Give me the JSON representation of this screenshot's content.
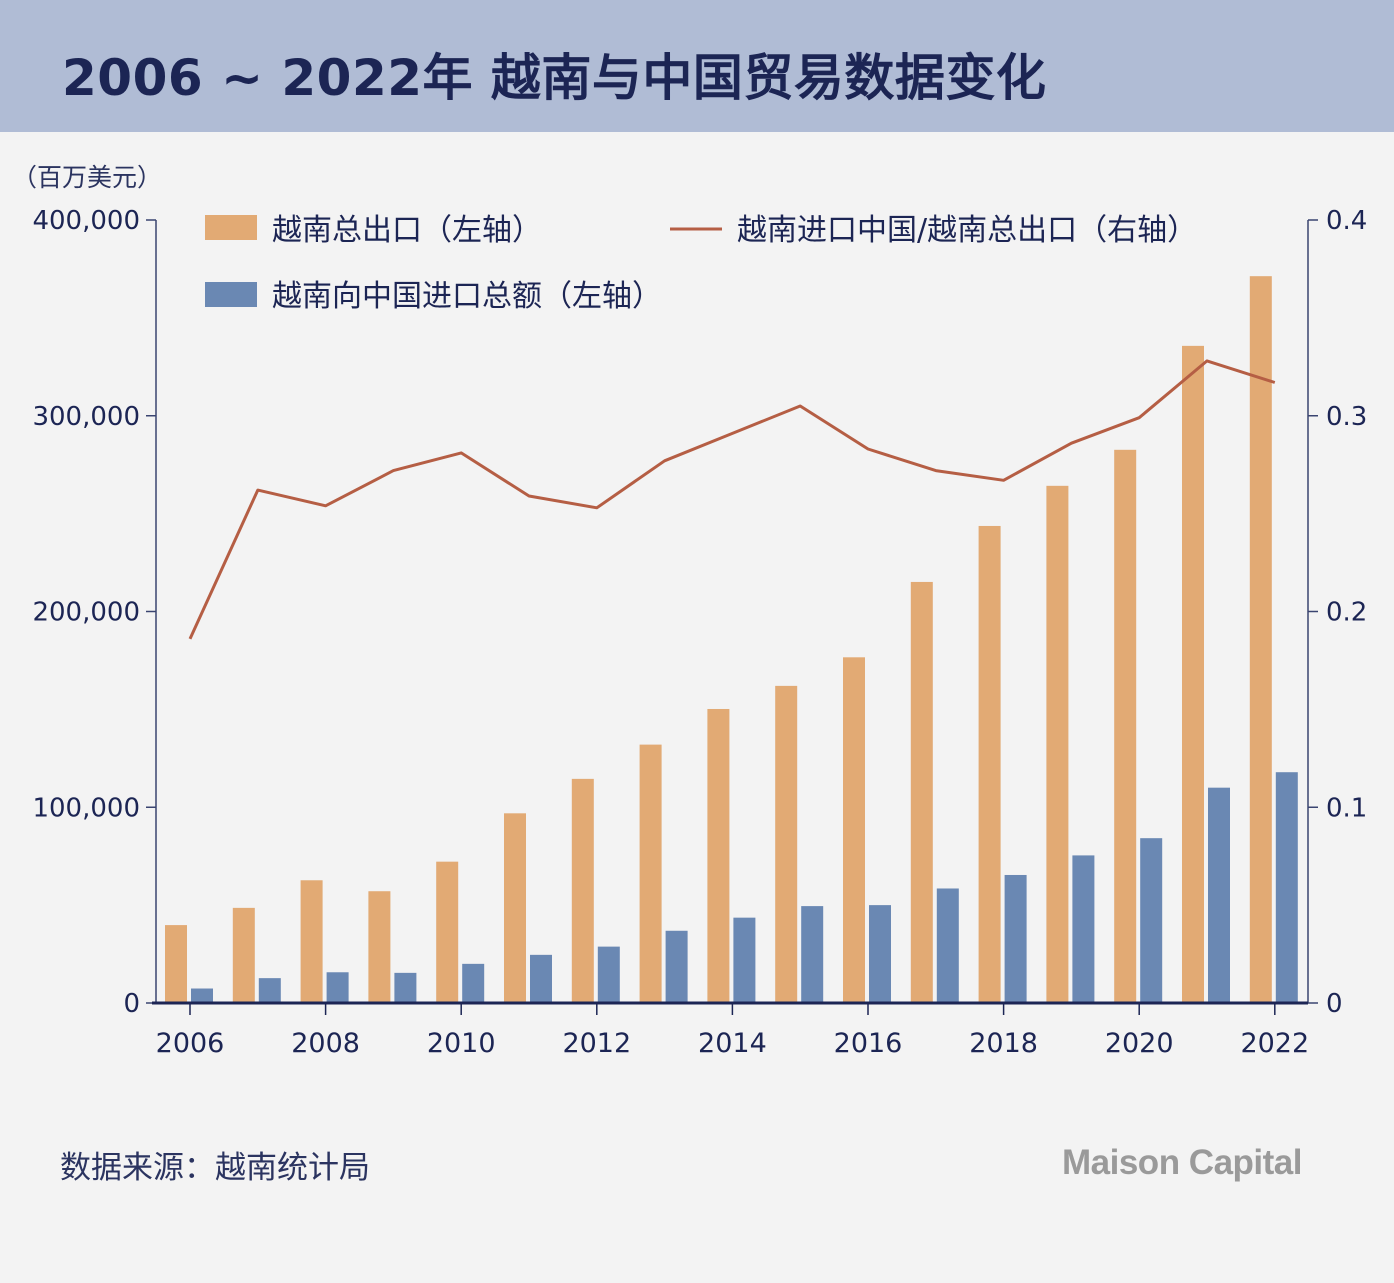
{
  "header": {
    "title": "2006 ~ 2022年 越南与中国贸易数据变化"
  },
  "footer": {
    "source": "数据来源：越南统计局",
    "logo": "Maison Capital"
  },
  "colors": {
    "header_bg": "#b0bcd5",
    "title": "#1c2554",
    "export_bar": "#e2aa74",
    "import_bar": "#6a88b3",
    "ratio_line": "#b55e44",
    "axis": "#1c2554"
  },
  "chart_data": {
    "type": "bar",
    "unit_label": "（百万美元）",
    "x": [
      2006,
      2007,
      2008,
      2009,
      2010,
      2011,
      2012,
      2013,
      2014,
      2015,
      2016,
      2017,
      2018,
      2019,
      2020,
      2021,
      2022
    ],
    "x_tick_labels": [
      "2006",
      "2008",
      "2010",
      "2012",
      "2014",
      "2016",
      "2018",
      "2020",
      "2022"
    ],
    "left_axis": {
      "ylim": [
        0,
        400000
      ],
      "ticks": [
        "0",
        "100,000",
        "200,000",
        "300,000",
        "400,000"
      ]
    },
    "right_axis": {
      "ylim": [
        0,
        0.4
      ],
      "ticks": [
        "0",
        "0.1",
        "0.2",
        "0.3",
        "0.4"
      ]
    },
    "series": [
      {
        "name": "越南总出口（左轴）",
        "kind": "bar",
        "axis": "left",
        "values": [
          39800,
          48600,
          62700,
          57100,
          72200,
          96900,
          114500,
          132000,
          150200,
          162000,
          176600,
          215100,
          243700,
          264200,
          282600,
          335700,
          371300
        ]
      },
      {
        "name": "越南向中国进口总额（左轴）",
        "kind": "bar",
        "axis": "left",
        "values": [
          7400,
          12700,
          15700,
          15400,
          20000,
          24600,
          28800,
          36900,
          43600,
          49500,
          50000,
          58500,
          65400,
          75400,
          84200,
          110000,
          117900
        ]
      },
      {
        "name": "越南进口中国/越南总出口（右轴）",
        "kind": "line",
        "axis": "right",
        "values": [
          0.186,
          0.262,
          0.254,
          0.272,
          0.281,
          0.259,
          0.253,
          0.277,
          0.291,
          0.305,
          0.283,
          0.272,
          0.267,
          0.286,
          0.299,
          0.328,
          0.317
        ]
      }
    ],
    "legend_position": "top",
    "grid": false
  }
}
